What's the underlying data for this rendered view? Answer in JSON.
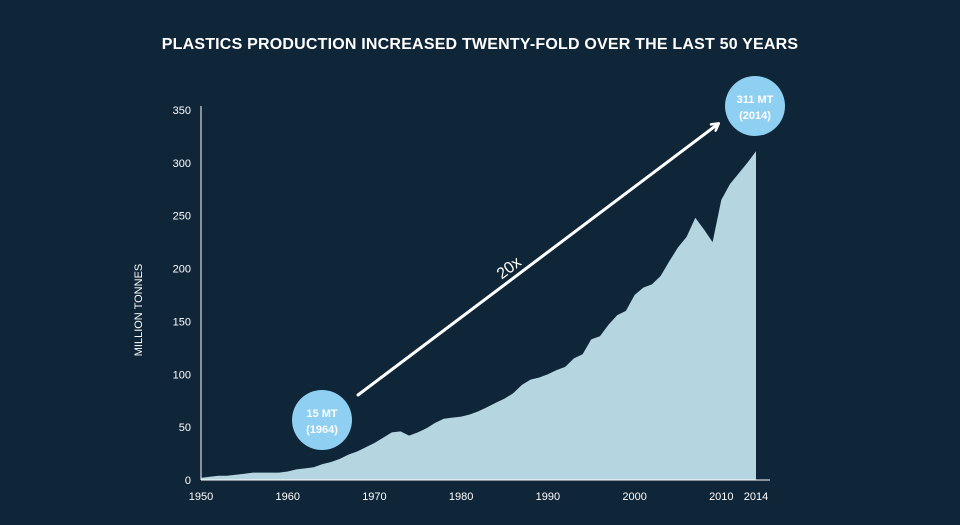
{
  "chart_data": {
    "type": "area",
    "title": "PLASTICS PRODUCTION INCREASED TWENTY-FOLD OVER THE LAST 50 YEARS",
    "xlabel": "",
    "ylabel": "MILLION TONNES",
    "xlim": [
      1950,
      2014
    ],
    "ylim": [
      0,
      350
    ],
    "x_ticks": [
      1950,
      1960,
      1970,
      1980,
      1990,
      2000,
      2010,
      2014
    ],
    "y_ticks": [
      0,
      50,
      100,
      150,
      200,
      250,
      300,
      350
    ],
    "grid": false,
    "fill_color": "#b5d5e1",
    "accent_color": "#8fcff1",
    "series": [
      {
        "x": [
          1950,
          1951,
          1952,
          1953,
          1954,
          1955,
          1956,
          1957,
          1958,
          1959,
          1960,
          1961,
          1962,
          1963,
          1964,
          1965,
          1966,
          1967,
          1968,
          1969,
          1970,
          1971,
          1972,
          1973,
          1974,
          1975,
          1976,
          1977,
          1978,
          1979,
          1980,
          1981,
          1982,
          1983,
          1984,
          1985,
          1986,
          1987,
          1988,
          1989,
          1990,
          1991,
          1992,
          1993,
          1994,
          1995,
          1996,
          1997,
          1998,
          1999,
          2000,
          2001,
          2002,
          2003,
          2004,
          2005,
          2006,
          2007,
          2008,
          2009,
          2010,
          2011,
          2012,
          2013,
          2014
        ],
        "values": [
          2,
          3,
          4,
          4,
          5,
          6,
          7,
          7,
          7,
          7,
          8,
          10,
          11,
          12,
          15,
          17,
          20,
          24,
          27,
          31,
          35,
          40,
          45,
          46,
          42,
          45,
          49,
          54,
          58,
          59,
          60,
          62,
          65,
          69,
          73,
          77,
          82,
          90,
          95,
          97,
          100,
          104,
          107,
          115,
          119,
          133,
          136,
          147,
          156,
          160,
          175,
          182,
          185,
          193,
          207,
          220,
          230,
          248,
          237,
          225,
          265,
          280,
          290,
          300,
          311
        ]
      }
    ],
    "annotations": {
      "start": {
        "label": "15 MT",
        "sub": "(1964)",
        "x": 1964,
        "y": 15
      },
      "end": {
        "label": "311 MT",
        "sub": "(2014)",
        "x": 2014,
        "y": 311
      },
      "multiplier": "20x"
    }
  }
}
